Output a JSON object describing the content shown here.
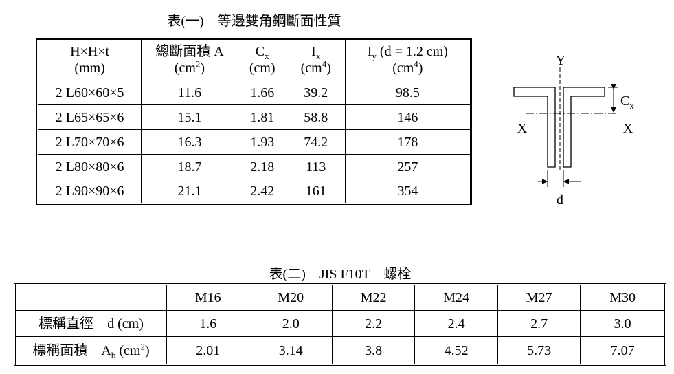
{
  "table1": {
    "title": "表(一)　等邊雙角鋼斷面性質",
    "columns": [
      [
        [
          {
            "text": "H×H×t"
          }
        ],
        [
          {
            "text": "(mm)"
          }
        ]
      ],
      [
        [
          {
            "text": "總斷面積 A"
          }
        ],
        [
          {
            "text": "(cm"
          },
          {
            "text": "2",
            "style": "sup"
          },
          {
            "text": ")"
          }
        ]
      ],
      [
        [
          {
            "text": "C"
          },
          {
            "text": "x",
            "style": "sub"
          }
        ],
        [
          {
            "text": "(cm)"
          }
        ]
      ],
      [
        [
          {
            "text": "I"
          },
          {
            "text": "x",
            "style": "sub"
          }
        ],
        [
          {
            "text": "(cm"
          },
          {
            "text": "4",
            "style": "sup"
          },
          {
            "text": ")"
          }
        ]
      ],
      [
        [
          {
            "text": "I"
          },
          {
            "text": "y",
            "style": "sub"
          },
          {
            "text": " (d = 1.2 cm)"
          }
        ],
        [
          {
            "text": "(cm"
          },
          {
            "text": "4",
            "style": "sup"
          },
          {
            "text": ")"
          }
        ]
      ]
    ],
    "rows": [
      [
        "2 L60×60×5",
        "11.6",
        "1.66",
        "39.2",
        "98.5"
      ],
      [
        "2 L65×65×6",
        "15.1",
        "1.81",
        "58.8",
        "146"
      ],
      [
        "2 L70×70×6",
        "16.3",
        "1.93",
        "74.2",
        "178"
      ],
      [
        "2 L80×80×6",
        "18.7",
        "2.18",
        "113",
        "257"
      ],
      [
        "2 L90×90×6",
        "21.1",
        "2.42",
        "161",
        "354"
      ]
    ]
  },
  "figure": {
    "y_axis": "Y",
    "x_left": "X",
    "x_right": "X",
    "cx": "C",
    "cx_sub": "x",
    "d": "d"
  },
  "table2": {
    "title": "表(二)　JIS F10T　螺栓",
    "columns": [
      "M16",
      "M20",
      "M22",
      "M24",
      "M27",
      "M30"
    ],
    "row_labels": [
      [
        {
          "text": "標稱直徑　d (cm)"
        }
      ],
      [
        {
          "text": "標稱面積　A"
        },
        {
          "text": "b",
          "style": "sub"
        },
        {
          "text": " (cm"
        },
        {
          "text": "2",
          "style": "sup"
        },
        {
          "text": ")"
        }
      ]
    ],
    "rows": [
      [
        "1.6",
        "2.0",
        "2.2",
        "2.4",
        "2.7",
        "3.0"
      ],
      [
        "2.01",
        "3.14",
        "3.8",
        "4.52",
        "5.73",
        "7.07"
      ]
    ]
  }
}
